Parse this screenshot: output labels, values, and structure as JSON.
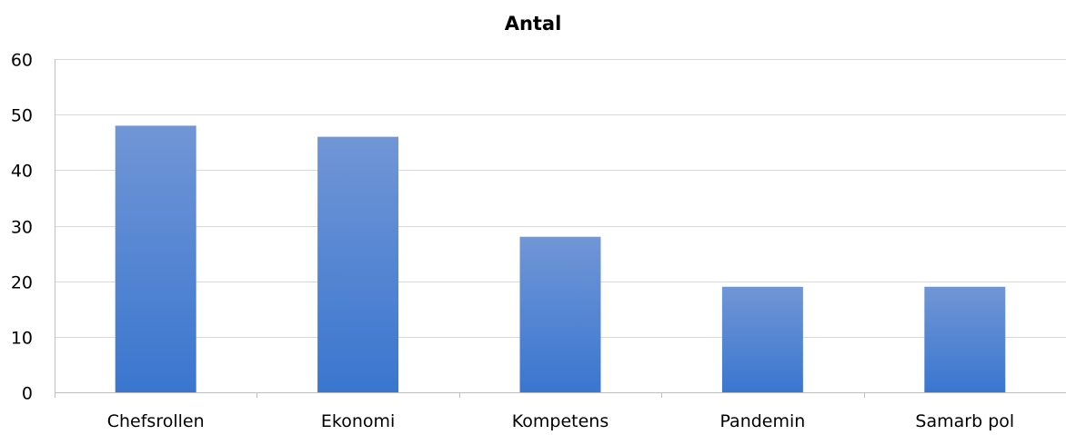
{
  "chart_data": {
    "type": "bar",
    "title": "Antal",
    "categories": [
      "Chefsrollen",
      "Ekonomi",
      "Kompetens",
      "Pandemin",
      "Samarb pol"
    ],
    "series": [
      {
        "values": [
          48,
          46,
          28,
          19,
          19
        ]
      }
    ],
    "ylim": [
      0,
      60
    ],
    "yticks": [
      "0",
      "10",
      "20",
      "30",
      "40",
      "50",
      "60"
    ],
    "grid": true,
    "legend": "none",
    "bar_color_top": "#7196d6",
    "bar_color_bottom": "#3a76cf",
    "grid_color": "#d9d9d9",
    "axis_color": "#bfbfbf"
  }
}
